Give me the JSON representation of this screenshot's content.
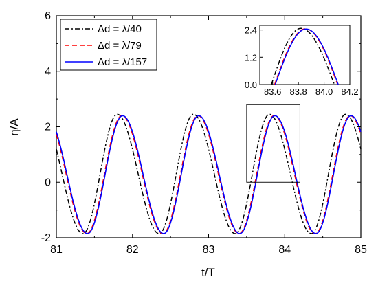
{
  "chart_data": [
    {
      "type": "line",
      "title": "",
      "xlabel": "t/T",
      "ylabel": "η/A",
      "xlim": [
        81,
        85
      ],
      "ylim": [
        -2,
        6
      ],
      "x_ticks": [
        "81",
        "82",
        "83",
        "84",
        "85"
      ],
      "y_ticks": [
        "-2",
        "0",
        "2",
        "4",
        "6"
      ],
      "grid": false,
      "legend_position": "top-left",
      "period": 1.0,
      "series": [
        {
          "name": "Δd = λ/40",
          "color": "#000000",
          "dash": "dash-dot",
          "crest_t": [
            81.8,
            82.8,
            83.8,
            84.8
          ],
          "trough_t": [
            81.35,
            82.35,
            83.35,
            84.35
          ],
          "crest": 2.45,
          "trough": -1.85
        },
        {
          "name": "Δd = λ/79",
          "color": "#ff0000",
          "dash": "dashed",
          "crest_t": [
            81.86,
            82.86,
            83.86,
            84.86
          ],
          "trough_t": [
            81.4,
            82.4,
            83.4,
            84.4
          ],
          "crest": 2.4,
          "trough": -1.85
        },
        {
          "name": "Δd = λ/157",
          "color": "#0000ff",
          "dash": "solid",
          "crest_t": [
            81.87,
            82.87,
            83.87,
            84.87
          ],
          "trough_t": [
            81.41,
            82.41,
            83.41,
            84.41
          ],
          "crest": 2.4,
          "trough": -1.85
        }
      ],
      "zoom_box": {
        "xlim": [
          83.5,
          84.2
        ],
        "ylim": [
          0,
          2.6
        ]
      }
    },
    {
      "type": "line",
      "title": "",
      "xlabel": "",
      "ylabel": "",
      "xlim": [
        83.5,
        84.2
      ],
      "ylim": [
        0,
        2.6
      ],
      "x_ticks": [
        "83.6",
        "83.8",
        "84.0",
        "84.2"
      ],
      "y_ticks": [
        "0.0",
        "1.2",
        "2.4"
      ],
      "series": [
        {
          "name": "Δd = λ/40",
          "color": "#000000",
          "dash": "dash-dot",
          "x": [
            83.59,
            83.82,
            84.08
          ],
          "y": [
            0,
            2.47,
            0
          ]
        },
        {
          "name": "Δd = λ/79",
          "color": "#ff0000",
          "dash": "dashed",
          "x": [
            83.615,
            83.855,
            84.105
          ],
          "y": [
            0,
            2.45,
            0
          ]
        },
        {
          "name": "Δd = λ/157",
          "color": "#0000ff",
          "dash": "solid",
          "x": [
            83.62,
            83.86,
            84.11
          ],
          "y": [
            0,
            2.44,
            0
          ]
        }
      ]
    }
  ]
}
